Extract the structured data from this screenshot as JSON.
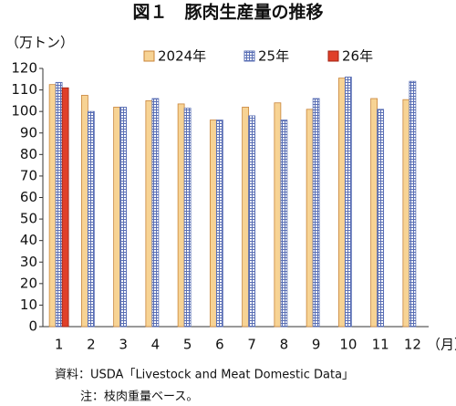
{
  "chart_data": {
    "type": "bar",
    "title": "図１　豚肉生産量の推移",
    "y_label": "（万トン）",
    "x_label": "（月）",
    "categories": [
      "1",
      "2",
      "3",
      "4",
      "5",
      "6",
      "7",
      "8",
      "9",
      "10",
      "11",
      "12"
    ],
    "series": [
      {
        "name": "2024年",
        "color": "#f7d394",
        "values": [
          112.5,
          107.5,
          102,
          105,
          103.5,
          96,
          102,
          104,
          101,
          115.5,
          106,
          105.5
        ]
      },
      {
        "name": "25年",
        "color": "#5a6fb5",
        "values": [
          113.5,
          100,
          102,
          106,
          101.5,
          96,
          98,
          96,
          106,
          116,
          101,
          114
        ]
      },
      {
        "name": "26年",
        "color": "#e0402a",
        "values": [
          111,
          null,
          null,
          null,
          null,
          null,
          null,
          null,
          null,
          null,
          null,
          null
        ]
      }
    ],
    "ylim": [
      0,
      120
    ],
    "yticks": [
      0,
      10,
      20,
      30,
      40,
      50,
      60,
      70,
      80,
      90,
      100,
      110,
      120
    ],
    "notes": [
      "資料：USDA「Livestock and Meat Domestic Data」",
      "注：枝肉重量ベース。"
    ]
  }
}
